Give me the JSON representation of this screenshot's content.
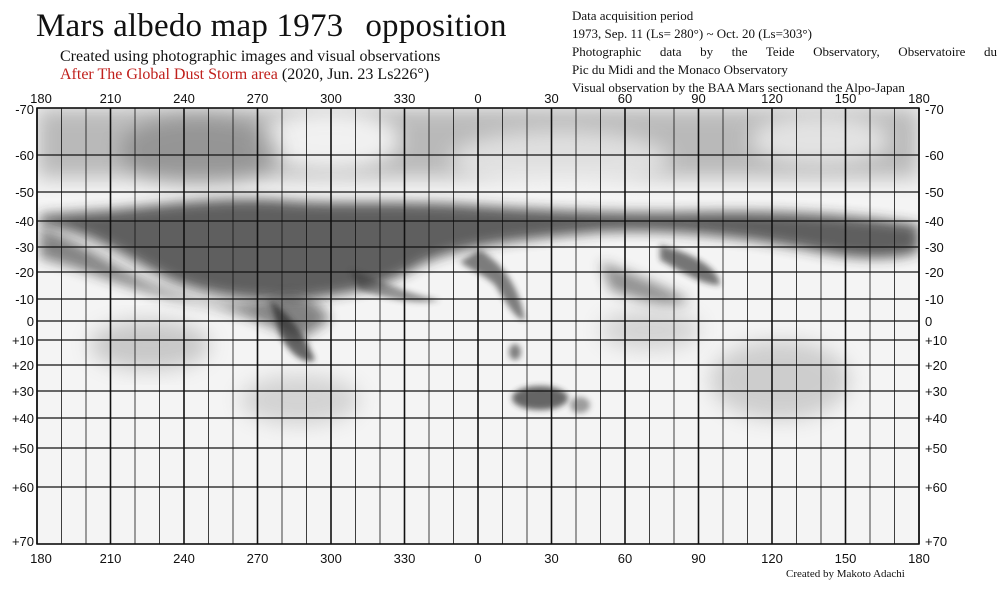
{
  "title": {
    "main": "Mars albedo map 1973",
    "suffix": "opposition"
  },
  "subtitle": {
    "line1": "Created using photographic images and visual observations",
    "red": "After The Global Dust Storm area",
    "date": " (2020, Jun. 23  Ls226°)"
  },
  "info": {
    "heading": "Data acquisition period",
    "period": "1973,  Sep. 11 (Ls= 280°)  ~ Oct. 20  (Ls=303°)",
    "photo1": "Photographic data by the Teide Observatory, Observatoire du",
    "photo2": "Pic du Midi and the Monaco Observatory",
    "visual": "Visual observation by the BAA Mars sectionand the Alpo-Japan"
  },
  "credit": "Created by Makoto Adachi",
  "map": {
    "longitude_labels": [
      "180",
      "210",
      "240",
      "270",
      "300",
      "330",
      "0",
      "30",
      "60",
      "90",
      "120",
      "150",
      "180"
    ],
    "latitude_labels": [
      "-70",
      "-60",
      "-50",
      "-40",
      "-30",
      "-20",
      "-10",
      "0",
      "+10",
      "+20",
      "+30",
      "+40",
      "+50",
      "+60",
      "+70"
    ],
    "colors": {
      "grid": "#111111",
      "paper": "#f4f4f4",
      "shading": "#3a3a3a"
    }
  }
}
